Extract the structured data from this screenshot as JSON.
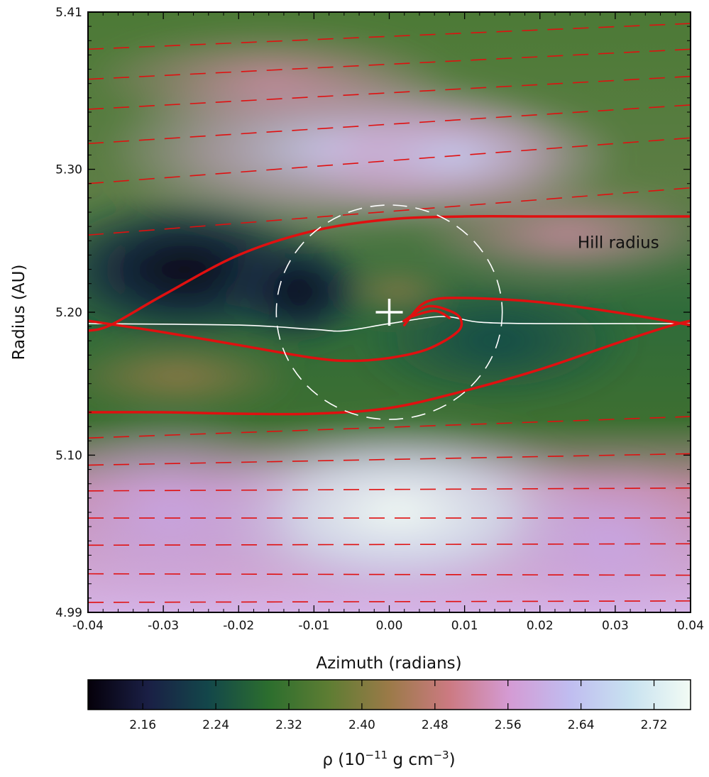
{
  "chart_data": {
    "type": "heatmap",
    "xlabel": "Azimuth (radians)",
    "ylabel": "Radius (AU)",
    "xlim": [
      -0.04,
      0.04
    ],
    "ylim": [
      4.99,
      5.41
    ],
    "xticks": [
      -0.04,
      -0.03,
      -0.02,
      -0.01,
      0.0,
      0.01,
      0.02,
      0.03,
      0.04
    ],
    "xtick_labels": [
      "-0.04",
      "-0.03",
      "-0.02",
      "-0.01",
      "0.00",
      "0.01",
      "0.02",
      "0.03",
      "0.04"
    ],
    "yticks": [
      4.99,
      5.1,
      5.2,
      5.3,
      5.41
    ],
    "ytick_labels": [
      "4.99",
      "5.10",
      "5.20",
      "5.30",
      "5.41"
    ],
    "colorbar": {
      "label_prefix": "ρ (10",
      "label_exp1": "−11",
      "label_mid": " g cm",
      "label_exp2": "−3",
      "label_suffix": ")",
      "range": [
        2.1,
        2.76
      ],
      "ticks": [
        2.16,
        2.24,
        2.32,
        2.4,
        2.48,
        2.56,
        2.64,
        2.72
      ],
      "tick_labels": [
        "2.16",
        "2.24",
        "2.32",
        "2.40",
        "2.48",
        "2.56",
        "2.64",
        "2.72"
      ],
      "colormap": [
        "#05000a",
        "#1a1f45",
        "#13474a",
        "#2c6e2e",
        "#5e7d33",
        "#9b7a48",
        "#cc7a82",
        "#d49bd4",
        "#c0bdf0",
        "#c8e2f0",
        "#f2fbf4"
      ]
    },
    "planet": {
      "x": 0.0,
      "y": 5.2,
      "marker": "plus",
      "color": "#ffffff"
    },
    "annotations": [
      {
        "text": "Hill radius",
        "x": 0.025,
        "y": 5.245
      }
    ],
    "hill_circle": {
      "cx": 0.0,
      "cy": 5.2,
      "r_azimuth": 0.015,
      "r_radius": 0.075
    },
    "streamlines": {
      "color": "#e01010",
      "horseshoe": [
        {
          "x": [
            -0.04,
            -0.037,
            -0.03,
            -0.02,
            -0.01,
            0.0,
            0.01,
            0.02,
            0.03,
            0.04
          ],
          "y": [
            5.187,
            5.191,
            5.212,
            5.24,
            5.257,
            5.265,
            5.267,
            5.267,
            5.267,
            5.267
          ]
        },
        {
          "x": [
            -0.04,
            -0.03,
            -0.02,
            -0.01,
            0.0,
            0.01,
            0.02,
            0.03,
            0.037,
            0.04
          ],
          "y": [
            5.13,
            5.13,
            5.129,
            5.129,
            5.133,
            5.145,
            5.16,
            5.178,
            5.19,
            5.194
          ]
        },
        {
          "x": [
            -0.04,
            -0.03,
            -0.02,
            -0.01,
            -0.005,
            0.0,
            0.005,
            0.009,
            0.0095,
            0.008,
            0.005,
            0.002,
            0.003,
            0.006,
            0.008
          ],
          "y": [
            5.194,
            5.186,
            5.177,
            5.168,
            5.166,
            5.168,
            5.174,
            5.186,
            5.195,
            5.201,
            5.204,
            5.194,
            5.197,
            5.201,
            5.196
          ]
        },
        {
          "x": [
            0.002,
            0.004,
            0.006,
            0.009,
            0.015,
            0.02,
            0.03,
            0.04
          ],
          "y": [
            5.191,
            5.204,
            5.209,
            5.21,
            5.209,
            5.207,
            5.2,
            5.191
          ]
        }
      ],
      "center": {
        "x": [
          -0.04,
          -0.02,
          -0.01,
          -0.006,
          0.0,
          0.007,
          0.012,
          0.02,
          0.03,
          0.04
        ],
        "y": [
          5.192,
          5.191,
          5.188,
          5.187,
          5.192,
          5.197,
          5.193,
          5.192,
          5.192,
          5.192
        ]
      },
      "outer_dashed_y_left": [
        5.254,
        5.29,
        5.318,
        5.342,
        5.363,
        5.384
      ],
      "outer_dashed_y_right": [
        5.287,
        5.322,
        5.345,
        5.365,
        5.384,
        5.402
      ],
      "inner_dashed_y_left": [
        4.997,
        5.017,
        5.037,
        5.056,
        5.075,
        5.093,
        5.112
      ],
      "inner_dashed_y_right": [
        4.998,
        5.016,
        5.038,
        5.056,
        5.077,
        5.101,
        5.127
      ]
    }
  }
}
